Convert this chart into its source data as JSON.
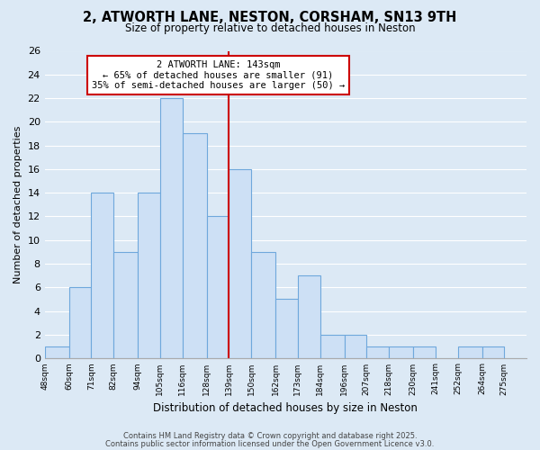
{
  "title": "2, ATWORTH LANE, NESTON, CORSHAM, SN13 9TH",
  "subtitle": "Size of property relative to detached houses in Neston",
  "xlabel": "Distribution of detached houses by size in Neston",
  "ylabel": "Number of detached properties",
  "bins": [
    48,
    60,
    71,
    82,
    94,
    105,
    116,
    128,
    139,
    150,
    162,
    173,
    184,
    196,
    207,
    218,
    230,
    241,
    252,
    264,
    275,
    286
  ],
  "counts": [
    1,
    6,
    14,
    9,
    14,
    22,
    19,
    12,
    16,
    9,
    5,
    7,
    2,
    2,
    1,
    1,
    1,
    0,
    1,
    1,
    0
  ],
  "bar_color": "#cde0f5",
  "bar_edge_color": "#6fa8dc",
  "redline_x": 139,
  "redline_color": "#cc0000",
  "annotation_title": "2 ATWORTH LANE: 143sqm",
  "annotation_line1": "← 65% of detached houses are smaller (91)",
  "annotation_line2": "35% of semi-detached houses are larger (50) →",
  "annotation_box_color": "#ffffff",
  "annotation_box_edge_color": "#cc0000",
  "ylim": [
    0,
    26
  ],
  "yticks": [
    0,
    2,
    4,
    6,
    8,
    10,
    12,
    14,
    16,
    18,
    20,
    22,
    24,
    26
  ],
  "tick_labels": [
    "48sqm",
    "60sqm",
    "71sqm",
    "82sqm",
    "94sqm",
    "105sqm",
    "116sqm",
    "128sqm",
    "139sqm",
    "150sqm",
    "162sqm",
    "173sqm",
    "184sqm",
    "196sqm",
    "207sqm",
    "218sqm",
    "230sqm",
    "241sqm",
    "252sqm",
    "264sqm",
    "275sqm"
  ],
  "xtick_positions": [
    48,
    60,
    71,
    82,
    94,
    105,
    116,
    128,
    139,
    150,
    162,
    173,
    184,
    196,
    207,
    218,
    230,
    241,
    252,
    264,
    275
  ],
  "background_color": "#dce9f5",
  "plot_bg_color": "#dce9f5",
  "grid_color": "#ffffff",
  "footer1": "Contains HM Land Registry data © Crown copyright and database right 2025.",
  "footer2": "Contains public sector information licensed under the Open Government Licence v3.0."
}
